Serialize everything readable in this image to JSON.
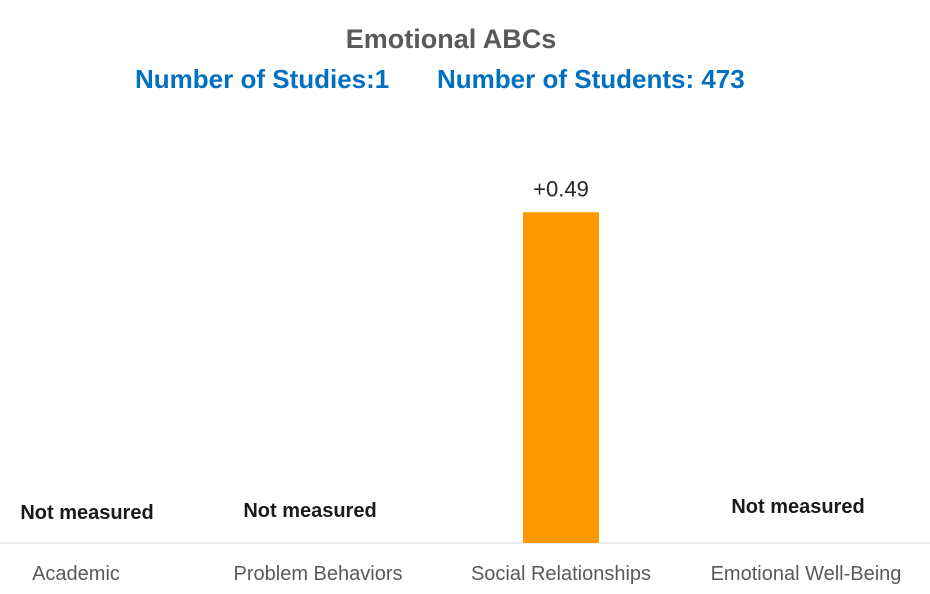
{
  "colors": {
    "title": "#595959",
    "subtitle": "#0070C0",
    "bar": "#FF9900",
    "axis": "#D9D9D9",
    "category_text": "#595959"
  },
  "chart_data": {
    "type": "bar",
    "title": "Emotional ABCs",
    "subtitle_studies": "Number of Studies:1",
    "subtitle_students": "Number of Students: 473",
    "categories": [
      "Academic",
      "Problem Behaviors",
      "Social Relationships",
      "Emotional Well-Being"
    ],
    "values": [
      null,
      null,
      0.49,
      null
    ],
    "value_labels": [
      "Not measured",
      "Not measured",
      "+0.49",
      "Not measured"
    ],
    "ylim": [
      0,
      0.6
    ],
    "grid": false,
    "legend": "none"
  }
}
